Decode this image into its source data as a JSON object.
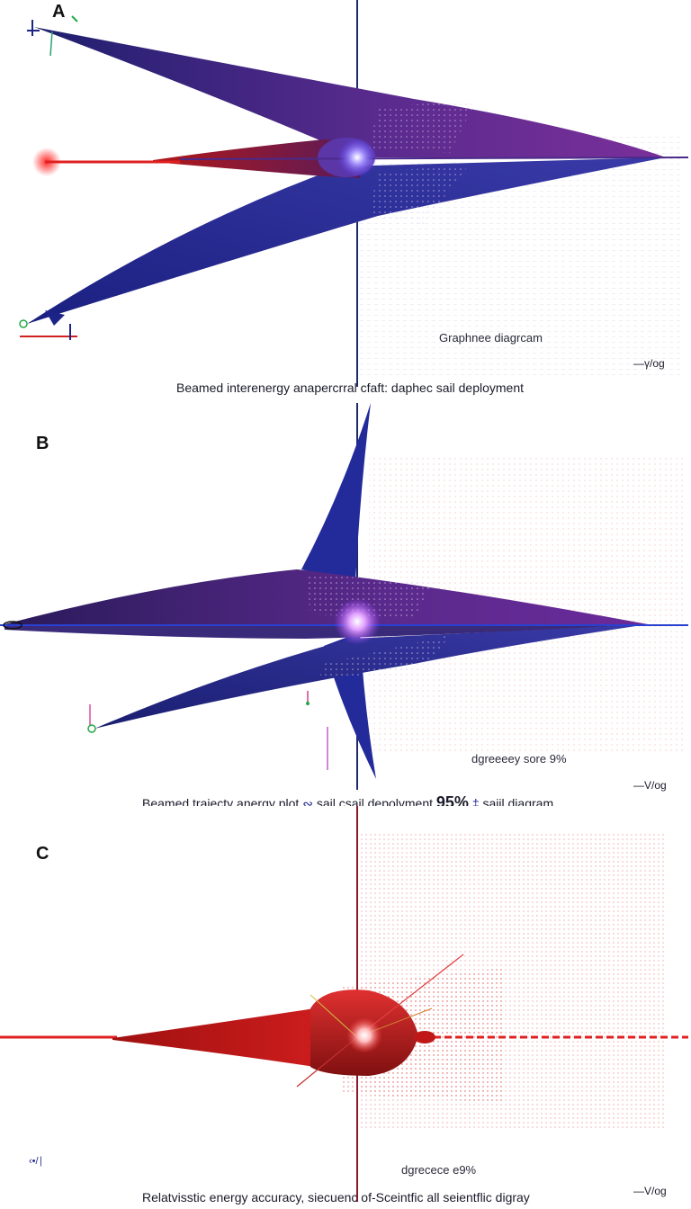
{
  "panel_a": {
    "letter": "A",
    "inner_label": "Graphnee diagrcam",
    "scale": "—γ/og",
    "caption": "Beamed interenergy anapercrral cfaft:  daphec sail deployment"
  },
  "panel_b": {
    "letter": "B",
    "inner_label": "dgreeeey sore 9%",
    "scale": "—V/og",
    "caption_parts": {
      "part1": "Beamed trajecty anergy plot",
      "part2": "sail csail depolyment",
      "percent": "95%",
      "part3": "saiil diagram"
    }
  },
  "panel_c": {
    "letter": "C",
    "inner_label": "dgrecece e9%",
    "scale": "—V/og",
    "corner_mark": "‹•/∣",
    "caption": "Relatvisstic energy accuracy, siecuenc of-Sceintfic all seientflic digray"
  },
  "colors": {
    "navy": "#1c2488",
    "purple": "#6a2a8c",
    "red": "#c81e1e",
    "axis": "#1e2a6a",
    "beam": "#e02020"
  }
}
